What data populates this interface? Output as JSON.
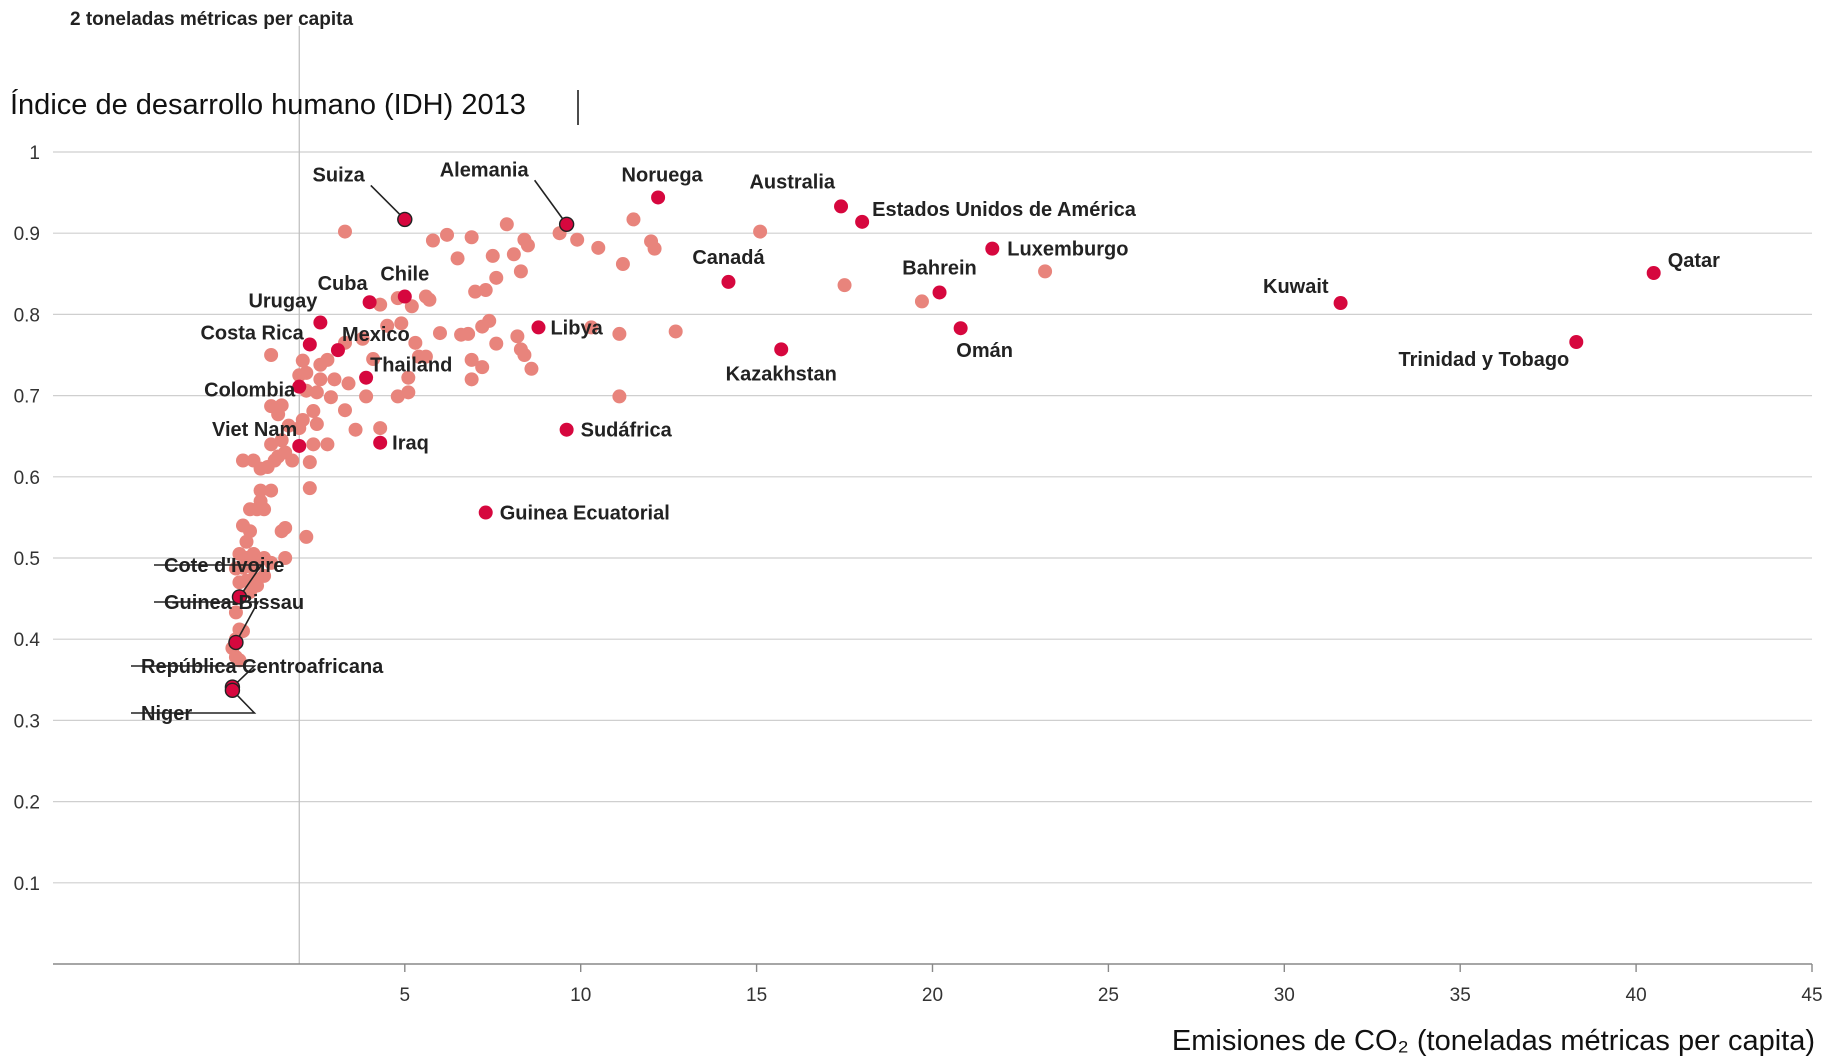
{
  "chart_data": {
    "type": "scatter",
    "title": "Índice de desarrollo humano (IDH) 2013",
    "xlabel": "Emisiones de CO₂ (toneladas métricas per capita)",
    "ylabel": "Índice de desarrollo humano (IDH) 2013",
    "xlim": [
      -5,
      45
    ],
    "ylim": [
      0,
      1
    ],
    "x_ticks": [
      5,
      10,
      15,
      20,
      25,
      30,
      35,
      40,
      45
    ],
    "y_ticks": [
      0.1,
      0.2,
      0.3,
      0.4,
      0.5,
      0.6,
      0.7,
      0.8,
      0.9,
      1
    ],
    "reference_line": {
      "x": 2,
      "label": "2 toneladas métricas per capita"
    },
    "grid": "horizontal",
    "colors": {
      "highlighted": "#d6073e",
      "others": "#e8847c",
      "grid": "#cfcfcf"
    },
    "labeled_points": [
      {
        "name": "Suiza",
        "x": 5.0,
        "y": 0.917
      },
      {
        "name": "Alemania",
        "x": 9.6,
        "y": 0.911
      },
      {
        "name": "Noruega",
        "x": 12.2,
        "y": 0.944
      },
      {
        "name": "Australia",
        "x": 17.4,
        "y": 0.933
      },
      {
        "name": "Estados Unidos de América",
        "x": 18.0,
        "y": 0.914
      },
      {
        "name": "Canadá",
        "x": 14.2,
        "y": 0.84
      },
      {
        "name": "Luxemburgo",
        "x": 21.7,
        "y": 0.881
      },
      {
        "name": "Bahrein",
        "x": 20.2,
        "y": 0.827
      },
      {
        "name": "Omán",
        "x": 20.8,
        "y": 0.783
      },
      {
        "name": "Kazakhstan",
        "x": 15.7,
        "y": 0.757
      },
      {
        "name": "Qatar",
        "x": 40.5,
        "y": 0.851
      },
      {
        "name": "Kuwait",
        "x": 31.6,
        "y": 0.814
      },
      {
        "name": "Trinidad y Tobago",
        "x": 38.3,
        "y": 0.766
      },
      {
        "name": "Chile",
        "x": 5.0,
        "y": 0.822
      },
      {
        "name": "Cuba",
        "x": 4.0,
        "y": 0.815
      },
      {
        "name": "Urugay",
        "x": 2.6,
        "y": 0.79
      },
      {
        "name": "Costa Rica",
        "x": 2.3,
        "y": 0.763
      },
      {
        "name": "Mexico",
        "x": 3.1,
        "y": 0.756
      },
      {
        "name": "Thailand",
        "x": 3.9,
        "y": 0.722
      },
      {
        "name": "Colombia",
        "x": 2.0,
        "y": 0.711
      },
      {
        "name": "Libya",
        "x": 8.8,
        "y": 0.784
      },
      {
        "name": "Sudáfrica",
        "x": 9.6,
        "y": 0.658
      },
      {
        "name": "Iraq",
        "x": 4.3,
        "y": 0.642
      },
      {
        "name": "Viet Nam",
        "x": 2.0,
        "y": 0.638
      },
      {
        "name": "Guinea Ecuatorial",
        "x": 7.3,
        "y": 0.556
      },
      {
        "name": "Cote d'Ivoire",
        "x": 0.3,
        "y": 0.452
      },
      {
        "name": "Guinea-Bissau",
        "x": 0.2,
        "y": 0.396
      },
      {
        "name": "República Centroafricana",
        "x": 0.1,
        "y": 0.341
      },
      {
        "name": "Niger",
        "x": 0.1,
        "y": 0.337
      }
    ],
    "other_points": [
      [
        3.3,
        0.902
      ],
      [
        6.2,
        0.898
      ],
      [
        6.9,
        0.895
      ],
      [
        7.9,
        0.911
      ],
      [
        8.4,
        0.892
      ],
      [
        8.5,
        0.885
      ],
      [
        9.4,
        0.9
      ],
      [
        9.9,
        0.892
      ],
      [
        11.5,
        0.917
      ],
      [
        12.0,
        0.89
      ],
      [
        12.1,
        0.881
      ],
      [
        15.1,
        0.902
      ],
      [
        10.5,
        0.882
      ],
      [
        5.8,
        0.891
      ],
      [
        6.5,
        0.869
      ],
      [
        7.5,
        0.872
      ],
      [
        8.1,
        0.874
      ],
      [
        8.3,
        0.853
      ],
      [
        11.2,
        0.862
      ],
      [
        23.2,
        0.853
      ],
      [
        17.5,
        0.836
      ],
      [
        19.7,
        0.816
      ],
      [
        5.7,
        0.818
      ],
      [
        5.2,
        0.81
      ],
      [
        5.6,
        0.822
      ],
      [
        4.8,
        0.82
      ],
      [
        4.3,
        0.812
      ],
      [
        7.0,
        0.828
      ],
      [
        7.3,
        0.83
      ],
      [
        7.6,
        0.845
      ],
      [
        4.9,
        0.789
      ],
      [
        6.6,
        0.775
      ],
      [
        6.0,
        0.777
      ],
      [
        6.8,
        0.776
      ],
      [
        7.2,
        0.785
      ],
      [
        7.4,
        0.792
      ],
      [
        7.6,
        0.764
      ],
      [
        8.2,
        0.773
      ],
      [
        8.3,
        0.757
      ],
      [
        8.4,
        0.75
      ],
      [
        8.6,
        0.733
      ],
      [
        10.3,
        0.784
      ],
      [
        11.1,
        0.776
      ],
      [
        12.7,
        0.779
      ],
      [
        11.1,
        0.699
      ],
      [
        3.8,
        0.77
      ],
      [
        4.1,
        0.745
      ],
      [
        4.5,
        0.786
      ],
      [
        3.3,
        0.765
      ],
      [
        5.3,
        0.765
      ],
      [
        5.4,
        0.748
      ],
      [
        5.6,
        0.748
      ],
      [
        6.9,
        0.744
      ],
      [
        6.9,
        0.72
      ],
      [
        7.2,
        0.735
      ],
      [
        5.1,
        0.722
      ],
      [
        5.1,
        0.704
      ],
      [
        4.8,
        0.699
      ],
      [
        3.9,
        0.699
      ],
      [
        3.4,
        0.715
      ],
      [
        3.0,
        0.72
      ],
      [
        2.6,
        0.72
      ],
      [
        2.9,
        0.698
      ],
      [
        2.6,
        0.738
      ],
      [
        2.8,
        0.744
      ],
      [
        2.5,
        0.704
      ],
      [
        2.2,
        0.706
      ],
      [
        2.1,
        0.743
      ],
      [
        2.2,
        0.728
      ],
      [
        2.0,
        0.725
      ],
      [
        1.2,
        0.75
      ],
      [
        3.3,
        0.682
      ],
      [
        2.4,
        0.681
      ],
      [
        2.1,
        0.67
      ],
      [
        2.5,
        0.665
      ],
      [
        2.0,
        0.66
      ],
      [
        1.7,
        0.663
      ],
      [
        1.5,
        0.688
      ],
      [
        1.2,
        0.687
      ],
      [
        1.4,
        0.677
      ],
      [
        3.6,
        0.658
      ],
      [
        4.3,
        0.66
      ],
      [
        2.4,
        0.64
      ],
      [
        2.8,
        0.64
      ],
      [
        2.3,
        0.618
      ],
      [
        1.8,
        0.62
      ],
      [
        1.6,
        0.63
      ],
      [
        1.4,
        0.625
      ],
      [
        1.3,
        0.62
      ],
      [
        1.1,
        0.612
      ],
      [
        0.9,
        0.61
      ],
      [
        0.7,
        0.62
      ],
      [
        1.2,
        0.64
      ],
      [
        1.5,
        0.645
      ],
      [
        0.4,
        0.62
      ],
      [
        2.3,
        0.586
      ],
      [
        0.9,
        0.583
      ],
      [
        1.2,
        0.583
      ],
      [
        0.6,
        0.56
      ],
      [
        0.8,
        0.56
      ],
      [
        1.0,
        0.56
      ],
      [
        0.9,
        0.57
      ],
      [
        1.5,
        0.533
      ],
      [
        1.6,
        0.537
      ],
      [
        2.2,
        0.526
      ],
      [
        0.4,
        0.54
      ],
      [
        0.6,
        0.533
      ],
      [
        0.5,
        0.52
      ],
      [
        0.3,
        0.505
      ],
      [
        0.5,
        0.5
      ],
      [
        0.7,
        0.505
      ],
      [
        1.0,
        0.5
      ],
      [
        0.2,
        0.487
      ],
      [
        0.4,
        0.488
      ],
      [
        0.6,
        0.49
      ],
      [
        0.8,
        0.493
      ],
      [
        1.2,
        0.494
      ],
      [
        1.6,
        0.5
      ],
      [
        0.3,
        0.47
      ],
      [
        0.5,
        0.472
      ],
      [
        0.7,
        0.475
      ],
      [
        1.0,
        0.478
      ],
      [
        0.6,
        0.458
      ],
      [
        0.8,
        0.466
      ],
      [
        0.2,
        0.433
      ],
      [
        0.3,
        0.412
      ],
      [
        0.2,
        0.4
      ],
      [
        0.4,
        0.41
      ],
      [
        0.1,
        0.389
      ],
      [
        0.2,
        0.378
      ],
      [
        0.3,
        0.374
      ]
    ]
  }
}
